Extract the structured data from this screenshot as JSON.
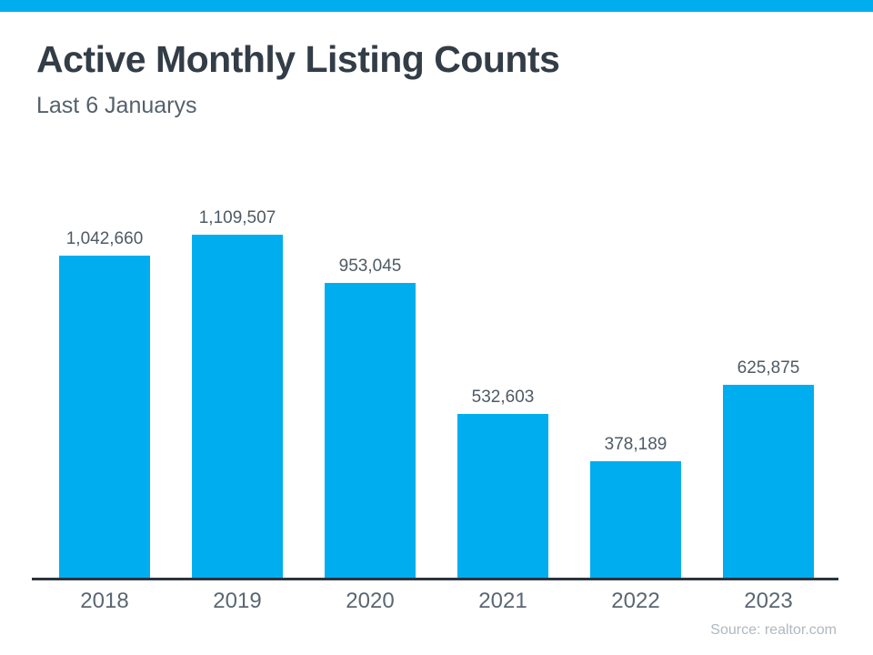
{
  "page": {
    "accent_color": "#00aeef"
  },
  "header": {
    "title": "Active Monthly Listing Counts",
    "subtitle": "Last 6 Januarys"
  },
  "chart_data": {
    "type": "bar",
    "title": "Active Monthly Listing Counts",
    "subtitle": "Last 6 Januarys",
    "categories": [
      "2018",
      "2019",
      "2020",
      "2021",
      "2022",
      "2023"
    ],
    "values": [
      1042660,
      1109507,
      953045,
      532603,
      378189,
      625875
    ],
    "value_labels": [
      "1,042,660",
      "1,109,507",
      "953,045",
      "532,603",
      "378,189",
      "625,875"
    ],
    "xlabel": "",
    "ylabel": "",
    "ylim": [
      0,
      1109507
    ],
    "bar_color": "#00aeef",
    "grid": false,
    "legend": false,
    "data_labels_position": "above-bars"
  },
  "footer": {
    "source": "Source: realtor.com"
  }
}
